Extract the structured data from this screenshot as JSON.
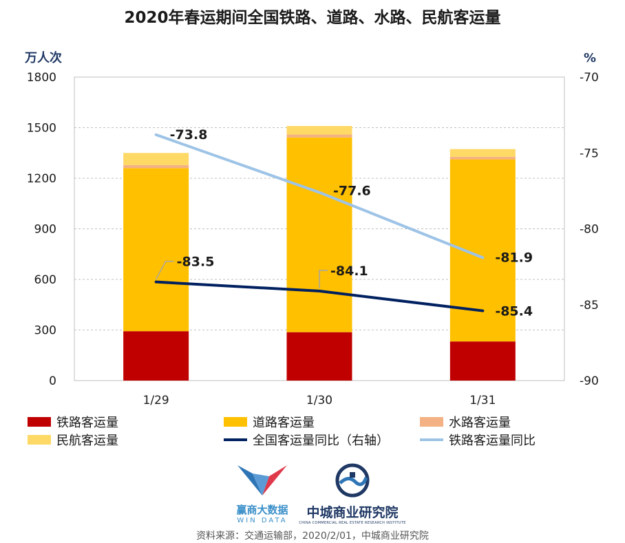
{
  "chart_data": {
    "type": "bar",
    "title": "2020年春运期间全国铁路、道路、水路、民航客运量",
    "categories": [
      "1/29",
      "1/30",
      "1/31"
    ],
    "left_axis": {
      "unit": "万人次",
      "ylim": [
        0,
        1800
      ],
      "ticks": [
        0,
        300,
        600,
        900,
        1200,
        1500,
        1800
      ]
    },
    "right_axis": {
      "unit": "%",
      "ylim": [
        -90,
        -70
      ],
      "ticks": [
        -90,
        -85,
        -80,
        -75,
        -70
      ]
    },
    "stacked_series": [
      {
        "name": "铁路客运量",
        "color": "#c00000",
        "values": [
          293,
          287,
          232
        ]
      },
      {
        "name": "道路客运量",
        "color": "#ffc000",
        "values": [
          967,
          1155,
          1080
        ]
      },
      {
        "name": "水路客运量",
        "color": "#f4b183",
        "values": [
          18,
          17,
          15
        ]
      },
      {
        "name": "民航客运量",
        "color": "#ffd966",
        "values": [
          72,
          51,
          46
        ]
      }
    ],
    "line_series": [
      {
        "name": "全国客运量同比（右轴）",
        "color": "#002060",
        "values": [
          -83.5,
          -84.1,
          -85.4
        ],
        "labels": [
          "-83.5",
          "-84.1",
          "-85.4"
        ]
      },
      {
        "name": "铁路客运量同比",
        "color": "#9dc3e6",
        "values": [
          -73.8,
          -77.6,
          -81.9
        ],
        "labels": [
          "-73.8",
          "-77.6",
          "-81.9"
        ]
      }
    ],
    "grid": "horizontal-dashed",
    "legend_position": "bottom"
  },
  "logos": {
    "wind_name": "赢商大数据",
    "wind_sub": "WIN DATA",
    "zc_name": "中城商业研究院",
    "zc_sub": "CHINA COMMERCIAL REAL ESTATE RESEARCH INSTITUTE"
  },
  "source": "资料来源：交通运输部，2020/2/01，中城商业研究院"
}
